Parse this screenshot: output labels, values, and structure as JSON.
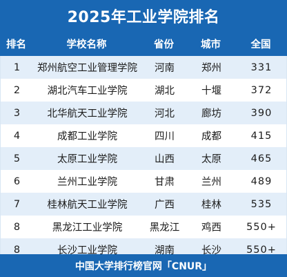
{
  "title": "2025年工业学院排名",
  "header": {
    "rank": "排名",
    "school": "学校名称",
    "province": "省份",
    "city": "城市",
    "national": "全国"
  },
  "rows": [
    {
      "rank": "1",
      "school": "郑州航空工业管理学院",
      "province": "河南",
      "city": "郑州",
      "national": "331"
    },
    {
      "rank": "2",
      "school": "湖北汽车工业学院",
      "province": "湖北",
      "city": "十堰",
      "national": "372"
    },
    {
      "rank": "3",
      "school": "北华航天工业学院",
      "province": "河北",
      "city": "廊坊",
      "national": "390"
    },
    {
      "rank": "4",
      "school": "成都工业学院",
      "province": "四川",
      "city": "成都",
      "national": "415"
    },
    {
      "rank": "5",
      "school": "太原工业学院",
      "province": "山西",
      "city": "太原",
      "national": "465"
    },
    {
      "rank": "6",
      "school": "兰州工业学院",
      "province": "甘肃",
      "city": "兰州",
      "national": "489"
    },
    {
      "rank": "7",
      "school": "桂林航天工业学院",
      "province": "广西",
      "city": "桂林",
      "national": "535"
    },
    {
      "rank": "8",
      "school": "黑龙江工业学院",
      "province": "黑龙江",
      "city": "鸡西",
      "national": "550+"
    },
    {
      "rank": "8",
      "school": "长沙工业学院",
      "province": "湖南",
      "city": "长沙",
      "national": "550+"
    }
  ],
  "footer": "中国大学排行榜官网「CNUR」",
  "colors": {
    "brand_blue": "#1967b3",
    "alt_row": "#e3eef9"
  }
}
